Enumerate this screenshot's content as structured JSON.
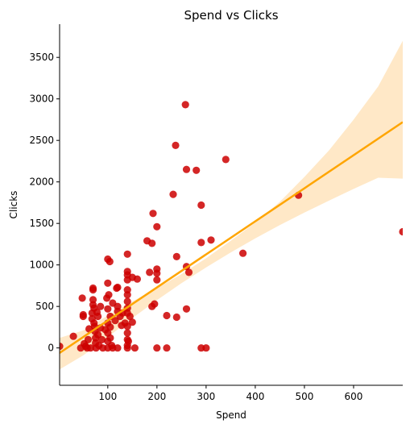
{
  "chart_data": {
    "type": "scatter",
    "title": "Spend vs Clicks",
    "xlabel": "Spend",
    "ylabel": "Clicks",
    "xlim": [
      2,
      700
    ],
    "ylim": [
      -450,
      3900
    ],
    "xticks": [
      100,
      200,
      300,
      400,
      500,
      600
    ],
    "yticks": [
      0,
      500,
      1000,
      1500,
      2000,
      2500,
      3000,
      3500
    ],
    "grid": false,
    "legend": "none",
    "point_color": "#cc0000",
    "line_color": "#ffa500",
    "band_color": "#ffe7c4",
    "regression": {
      "x": [
        2,
        700
      ],
      "y": [
        -60,
        2720
      ]
    },
    "confidence_band": {
      "x": [
        2,
        50,
        100,
        150,
        200,
        250,
        300,
        350,
        400,
        450,
        500,
        550,
        600,
        650,
        700
      ],
      "lower": [
        -260,
        -90,
        130,
        360,
        575,
        780,
        970,
        1150,
        1320,
        1480,
        1630,
        1775,
        1915,
        2050,
        2040
      ],
      "upper": [
        120,
        210,
        390,
        560,
        720,
        890,
        1080,
        1290,
        1510,
        1760,
        2060,
        2380,
        2750,
        3150,
        3700
      ]
    },
    "points": [
      {
        "x": 2,
        "y": 20
      },
      {
        "x": 30,
        "y": 140
      },
      {
        "x": 45,
        "y": 0
      },
      {
        "x": 48,
        "y": 600
      },
      {
        "x": 50,
        "y": 380
      },
      {
        "x": 50,
        "y": 400
      },
      {
        "x": 52,
        "y": 50
      },
      {
        "x": 55,
        "y": 20
      },
      {
        "x": 58,
        "y": 0
      },
      {
        "x": 60,
        "y": 100
      },
      {
        "x": 62,
        "y": 230
      },
      {
        "x": 65,
        "y": 0
      },
      {
        "x": 68,
        "y": 350
      },
      {
        "x": 68,
        "y": 420
      },
      {
        "x": 70,
        "y": 720
      },
      {
        "x": 70,
        "y": 700
      },
      {
        "x": 70,
        "y": 580
      },
      {
        "x": 70,
        "y": 520
      },
      {
        "x": 72,
        "y": 480
      },
      {
        "x": 72,
        "y": 300
      },
      {
        "x": 73,
        "y": 260
      },
      {
        "x": 74,
        "y": 200
      },
      {
        "x": 75,
        "y": 120
      },
      {
        "x": 75,
        "y": 60
      },
      {
        "x": 76,
        "y": 0
      },
      {
        "x": 78,
        "y": 430
      },
      {
        "x": 80,
        "y": 380
      },
      {
        "x": 80,
        "y": 160
      },
      {
        "x": 82,
        "y": 30
      },
      {
        "x": 85,
        "y": 500
      },
      {
        "x": 85,
        "y": 240
      },
      {
        "x": 88,
        "y": 100
      },
      {
        "x": 90,
        "y": 0
      },
      {
        "x": 95,
        "y": 220
      },
      {
        "x": 98,
        "y": 600
      },
      {
        "x": 100,
        "y": 1070
      },
      {
        "x": 100,
        "y": 780
      },
      {
        "x": 100,
        "y": 470
      },
      {
        "x": 100,
        "y": 300
      },
      {
        "x": 100,
        "y": 180
      },
      {
        "x": 100,
        "y": 80
      },
      {
        "x": 100,
        "y": 0
      },
      {
        "x": 102,
        "y": 640
      },
      {
        "x": 104,
        "y": 1040
      },
      {
        "x": 105,
        "y": 380
      },
      {
        "x": 105,
        "y": 250
      },
      {
        "x": 105,
        "y": 120
      },
      {
        "x": 108,
        "y": 30
      },
      {
        "x": 110,
        "y": 540
      },
      {
        "x": 110,
        "y": 0
      },
      {
        "x": 115,
        "y": 330
      },
      {
        "x": 118,
        "y": 720
      },
      {
        "x": 120,
        "y": 730
      },
      {
        "x": 120,
        "y": 500
      },
      {
        "x": 120,
        "y": 440
      },
      {
        "x": 120,
        "y": 0
      },
      {
        "x": 125,
        "y": 380
      },
      {
        "x": 128,
        "y": 270
      },
      {
        "x": 130,
        "y": 420
      },
      {
        "x": 135,
        "y": 300
      },
      {
        "x": 140,
        "y": 1130
      },
      {
        "x": 140,
        "y": 920
      },
      {
        "x": 140,
        "y": 880
      },
      {
        "x": 140,
        "y": 820
      },
      {
        "x": 140,
        "y": 700
      },
      {
        "x": 140,
        "y": 640
      },
      {
        "x": 140,
        "y": 560
      },
      {
        "x": 140,
        "y": 480
      },
      {
        "x": 140,
        "y": 420
      },
      {
        "x": 140,
        "y": 260
      },
      {
        "x": 140,
        "y": 180
      },
      {
        "x": 140,
        "y": 100
      },
      {
        "x": 140,
        "y": 30
      },
      {
        "x": 140,
        "y": 0
      },
      {
        "x": 142,
        "y": 80
      },
      {
        "x": 145,
        "y": 380
      },
      {
        "x": 150,
        "y": 310
      },
      {
        "x": 150,
        "y": 850
      },
      {
        "x": 155,
        "y": 0
      },
      {
        "x": 160,
        "y": 830
      },
      {
        "x": 180,
        "y": 1290
      },
      {
        "x": 185,
        "y": 910
      },
      {
        "x": 190,
        "y": 1260
      },
      {
        "x": 190,
        "y": 500
      },
      {
        "x": 192,
        "y": 1620
      },
      {
        "x": 195,
        "y": 530
      },
      {
        "x": 200,
        "y": 1460
      },
      {
        "x": 200,
        "y": 950
      },
      {
        "x": 200,
        "y": 900
      },
      {
        "x": 200,
        "y": 820
      },
      {
        "x": 200,
        "y": 0
      },
      {
        "x": 220,
        "y": 390
      },
      {
        "x": 220,
        "y": 0
      },
      {
        "x": 233,
        "y": 1850
      },
      {
        "x": 238,
        "y": 2440
      },
      {
        "x": 240,
        "y": 1100
      },
      {
        "x": 240,
        "y": 370
      },
      {
        "x": 258,
        "y": 2930
      },
      {
        "x": 260,
        "y": 2150
      },
      {
        "x": 260,
        "y": 980
      },
      {
        "x": 260,
        "y": 470
      },
      {
        "x": 265,
        "y": 910
      },
      {
        "x": 280,
        "y": 2140
      },
      {
        "x": 290,
        "y": 1720
      },
      {
        "x": 290,
        "y": 1270
      },
      {
        "x": 290,
        "y": 0
      },
      {
        "x": 300,
        "y": 0
      },
      {
        "x": 310,
        "y": 1300
      },
      {
        "x": 340,
        "y": 2270
      },
      {
        "x": 375,
        "y": 1140
      },
      {
        "x": 488,
        "y": 1840
      },
      {
        "x": 700,
        "y": 1400
      }
    ]
  }
}
